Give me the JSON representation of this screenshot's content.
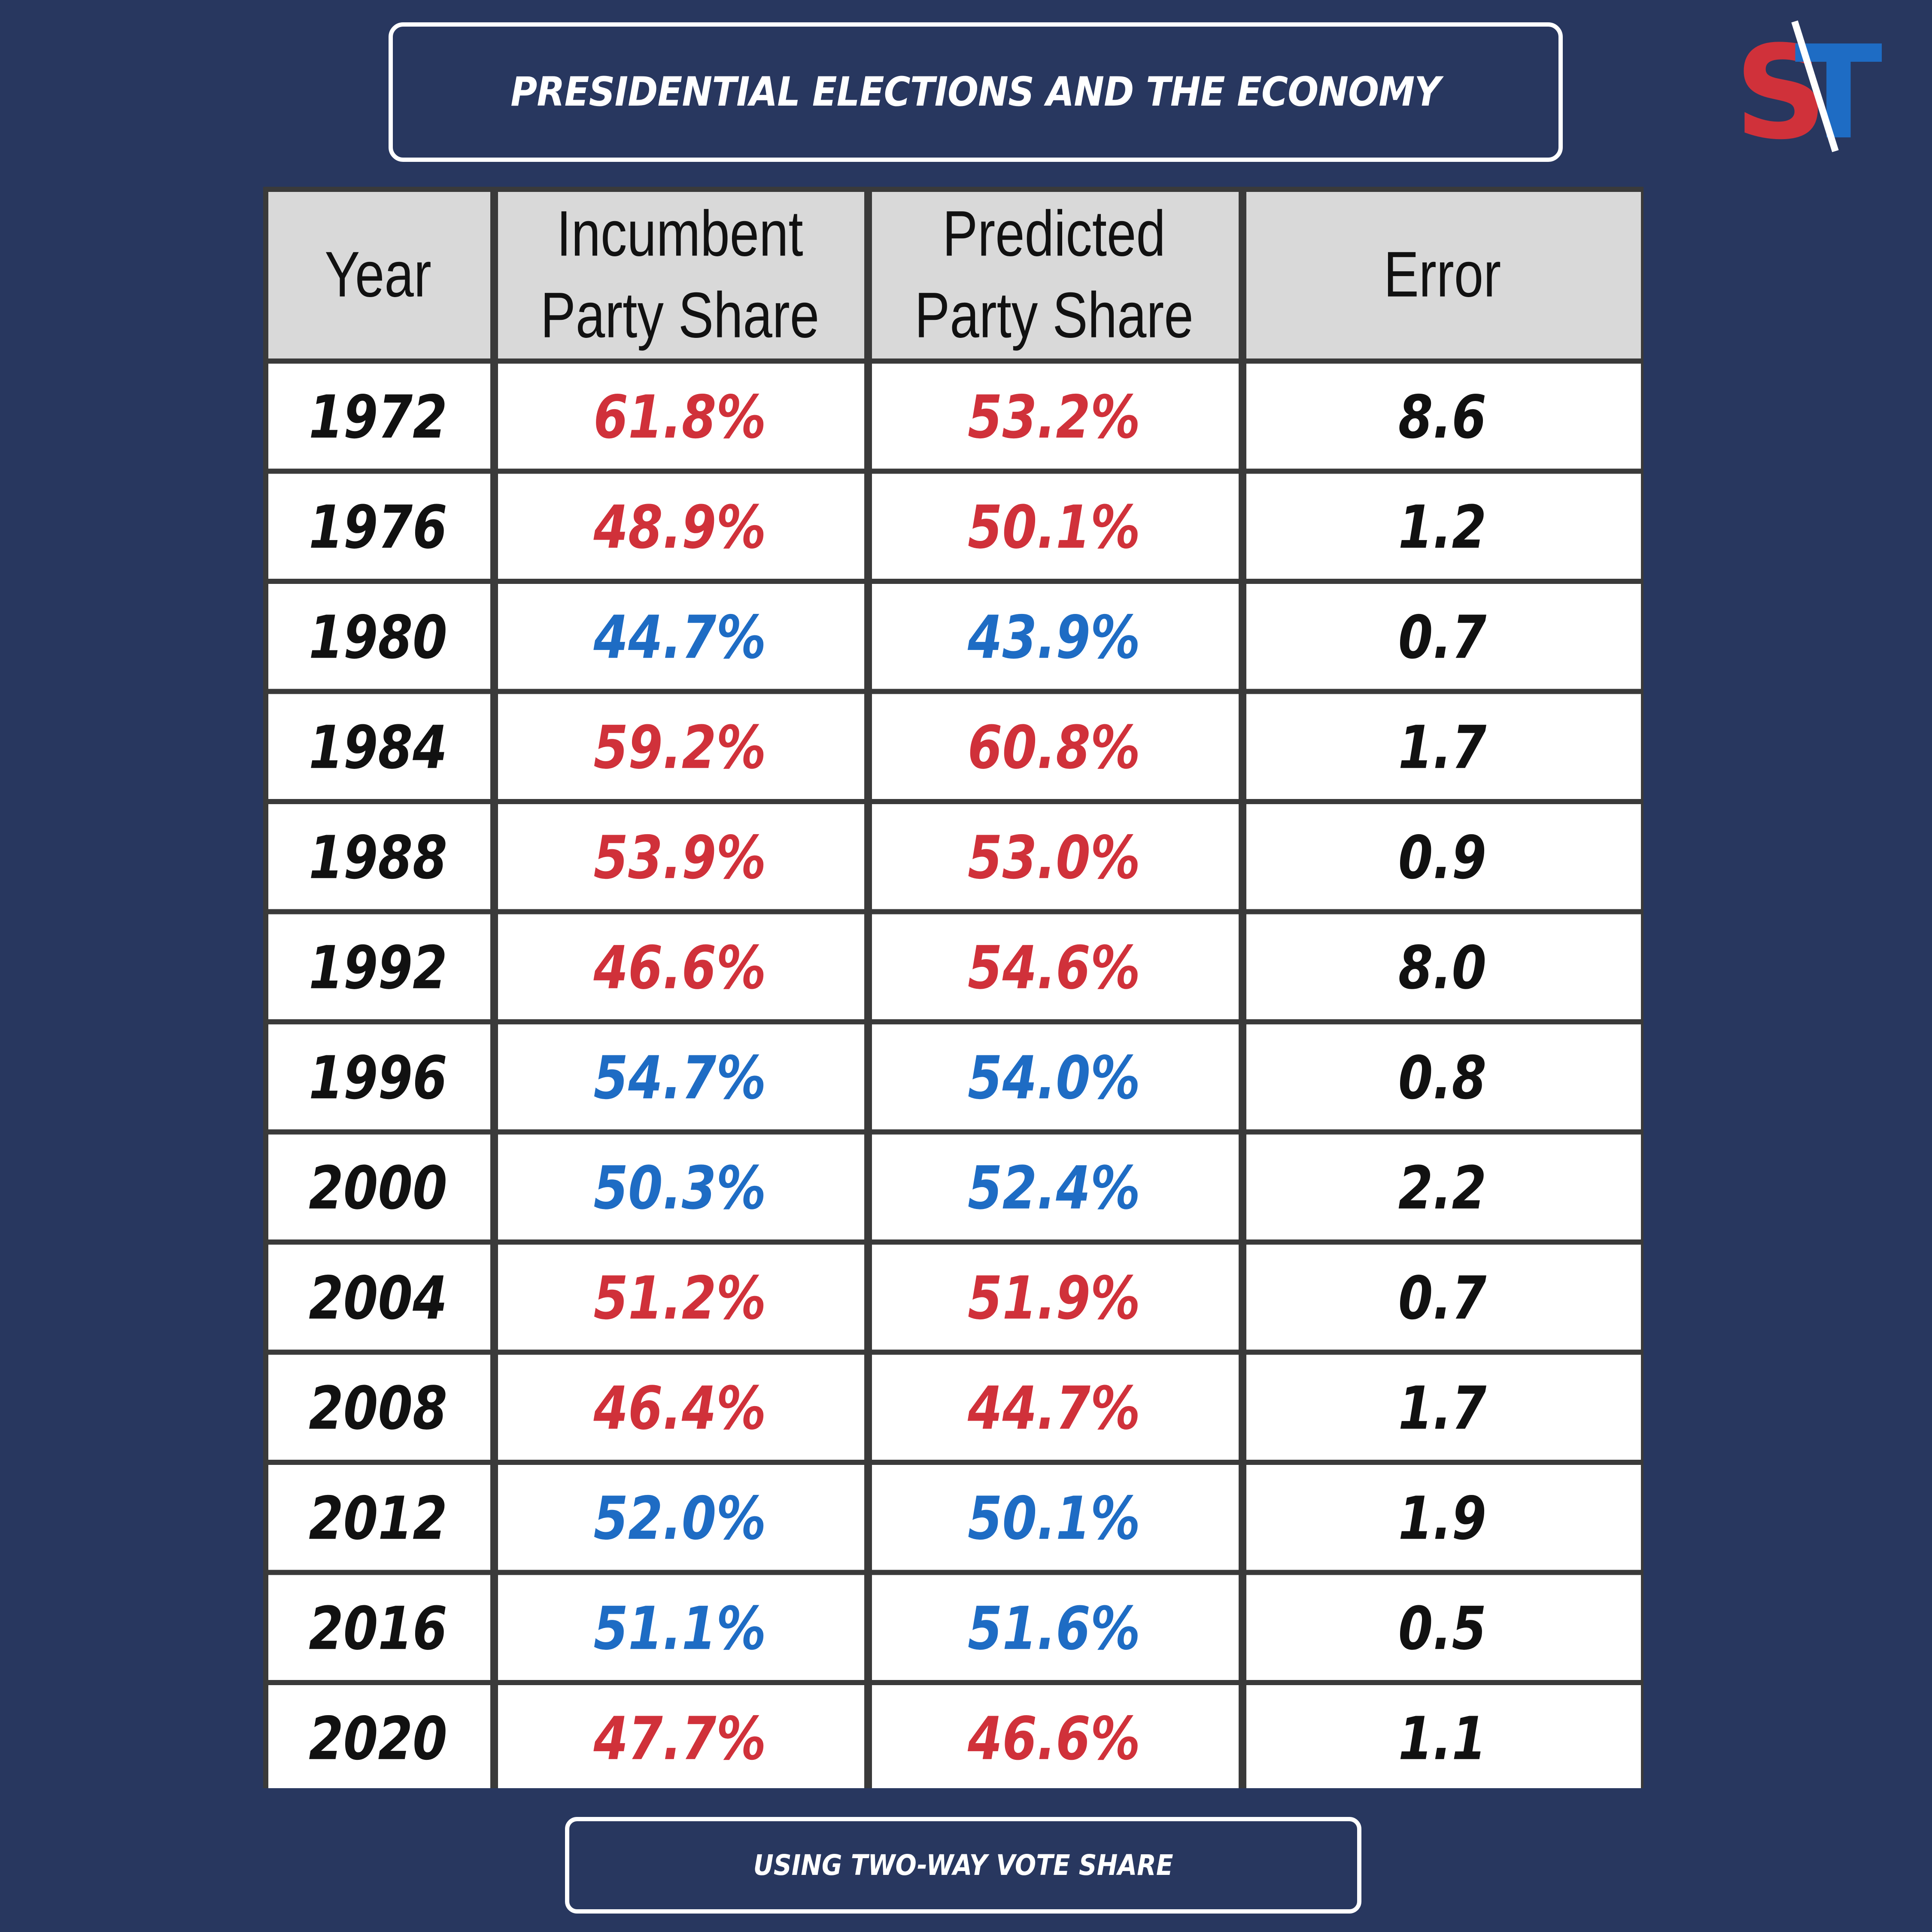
{
  "title": "PRESIDENTIAL ELECTIONS AND THE ECONOMY",
  "subtitle": "USING TWO-WAY VOTE SHARE",
  "logo": {
    "letters": "ST",
    "s_color": "#d0313a",
    "t_color": "#1e6cc4"
  },
  "colors": {
    "red": "#d0313a",
    "blue": "#1e6cc4",
    "black": "#111111",
    "header_bg": "#d9d9d9",
    "cell_bg": "#ffffff"
  },
  "chart_data": {
    "type": "table",
    "columns": [
      "Year",
      "Incumbent Party Share",
      "Predicted Party Share",
      "Error"
    ],
    "header_lines": [
      [
        "Year"
      ],
      [
        "Incumbent",
        "Party Share"
      ],
      [
        "Predicted",
        "Party Share"
      ],
      [
        "Error"
      ]
    ],
    "rows": [
      {
        "year": "1972",
        "incumbent": "61.8%",
        "predicted": "53.2%",
        "error": "8.6",
        "party": "red"
      },
      {
        "year": "1976",
        "incumbent": "48.9%",
        "predicted": "50.1%",
        "error": "1.2",
        "party": "red"
      },
      {
        "year": "1980",
        "incumbent": "44.7%",
        "predicted": "43.9%",
        "error": "0.7",
        "party": "blue"
      },
      {
        "year": "1984",
        "incumbent": "59.2%",
        "predicted": "60.8%",
        "error": "1.7",
        "party": "red"
      },
      {
        "year": "1988",
        "incumbent": "53.9%",
        "predicted": "53.0%",
        "error": "0.9",
        "party": "red"
      },
      {
        "year": "1992",
        "incumbent": "46.6%",
        "predicted": "54.6%",
        "error": "8.0",
        "party": "red"
      },
      {
        "year": "1996",
        "incumbent": "54.7%",
        "predicted": "54.0%",
        "error": "0.8",
        "party": "blue"
      },
      {
        "year": "2000",
        "incumbent": "50.3%",
        "predicted": "52.4%",
        "error": "2.2",
        "party": "blue"
      },
      {
        "year": "2004",
        "incumbent": "51.2%",
        "predicted": "51.9%",
        "error": "0.7",
        "party": "red"
      },
      {
        "year": "2008",
        "incumbent": "46.4%",
        "predicted": "44.7%",
        "error": "1.7",
        "party": "red"
      },
      {
        "year": "2012",
        "incumbent": "52.0%",
        "predicted": "50.1%",
        "error": "1.9",
        "party": "blue"
      },
      {
        "year": "2016",
        "incumbent": "51.1%",
        "predicted": "51.6%",
        "error": "0.5",
        "party": "blue"
      },
      {
        "year": "2020",
        "incumbent": "47.7%",
        "predicted": "46.6%",
        "error": "1.1",
        "party": "red"
      }
    ]
  }
}
